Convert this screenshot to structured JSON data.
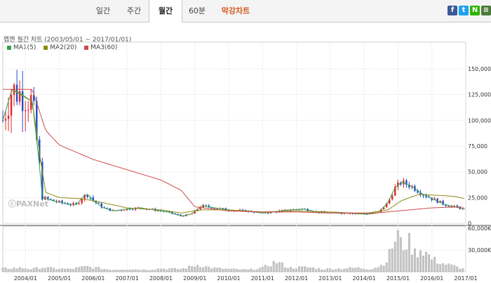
{
  "tabs": [
    {
      "label": "일간",
      "active": false
    },
    {
      "label": "주간",
      "active": false
    },
    {
      "label": "월간",
      "active": true
    },
    {
      "label": "60분",
      "active": false
    },
    {
      "label": "막강차트",
      "active": false
    }
  ],
  "share_icons": [
    {
      "name": "facebook-icon",
      "glyph": "f",
      "color": "#3b5998"
    },
    {
      "name": "twitter-icon",
      "glyph": "t",
      "color": "#1da1f2"
    },
    {
      "name": "naver-icon",
      "glyph": "N",
      "color": "#2db400"
    },
    {
      "name": "menu-icon",
      "glyph": "≡",
      "color": "#4a7c3a"
    }
  ],
  "watermark": "ⓒPAXNet",
  "chart_data": {
    "type": "candlestick",
    "title": "펩젠 월간 차트 (2003/05/01 ~ 2017/01/01)",
    "legend": [
      {
        "name": "MA1(5)",
        "color": "#3aa04a"
      },
      {
        "name": "MA2(20)",
        "color": "#8c8c14"
      },
      {
        "name": "MA3(60)",
        "color": "#d04a4a"
      }
    ],
    "x_ticks": [
      "2004/01",
      "2005/01",
      "2006/01",
      "2007/01",
      "2008/01",
      "2009/01",
      "2010/01",
      "2011/01",
      "2012/01",
      "2013/01",
      "2014/01",
      "2015/01",
      "2016/01",
      "2017/01"
    ],
    "price_ticks": [
      "150,000",
      "125,000",
      "100,000",
      "75,000",
      "50,000",
      "25,000",
      "0"
    ],
    "price_tick_values": [
      150000,
      125000,
      100000,
      75000,
      50000,
      25000,
      0
    ],
    "price_ylim": [
      0,
      165000
    ],
    "volume_ticks": [
      "60,000K",
      "30,000K"
    ],
    "volume_tick_values": [
      60000,
      30000
    ],
    "volume_ylim": [
      0,
      63000
    ],
    "x_range": [
      2003.33,
      2017.0
    ],
    "price_keypoints": [
      [
        2003.33,
        100000
      ],
      [
        2003.6,
        130000
      ],
      [
        2003.9,
        125000
      ],
      [
        2004.2,
        118000
      ],
      [
        2004.4,
        60000
      ],
      [
        2004.5,
        25000
      ],
      [
        2004.8,
        22000
      ],
      [
        2005.2,
        19000
      ],
      [
        2005.5,
        18000
      ],
      [
        2005.7,
        26000
      ],
      [
        2005.85,
        28000
      ],
      [
        2006.0,
        22000
      ],
      [
        2006.3,
        15000
      ],
      [
        2006.6,
        12000
      ],
      [
        2007.0,
        14000
      ],
      [
        2007.4,
        15000
      ],
      [
        2007.8,
        13000
      ],
      [
        2008.2,
        11000
      ],
      [
        2008.6,
        7000
      ],
      [
        2008.9,
        9000
      ],
      [
        2009.2,
        17000
      ],
      [
        2009.6,
        15000
      ],
      [
        2010.0,
        13000
      ],
      [
        2010.5,
        12000
      ],
      [
        2011.0,
        10000
      ],
      [
        2011.3,
        11000
      ],
      [
        2011.8,
        13000
      ],
      [
        2012.2,
        14000
      ],
      [
        2012.6,
        11000
      ],
      [
        2013.0,
        10000
      ],
      [
        2013.6,
        10000
      ],
      [
        2014.0,
        9000
      ],
      [
        2014.4,
        10000
      ],
      [
        2014.7,
        20000
      ],
      [
        2014.9,
        34000
      ],
      [
        2015.1,
        40000
      ],
      [
        2015.4,
        36000
      ],
      [
        2015.7,
        29000
      ],
      [
        2016.0,
        24000
      ],
      [
        2016.4,
        18000
      ],
      [
        2016.8,
        15000
      ],
      [
        2017.0,
        14000
      ]
    ],
    "ma3_keypoints": [
      [
        2003.33,
        130000
      ],
      [
        2004.2,
        130000
      ],
      [
        2004.6,
        90000
      ],
      [
        2005.0,
        76000
      ],
      [
        2006.0,
        62000
      ],
      [
        2007.0,
        52000
      ],
      [
        2008.0,
        42000
      ],
      [
        2008.6,
        32000
      ],
      [
        2009.0,
        16000
      ],
      [
        2010.0,
        12000
      ],
      [
        2011.0,
        11000
      ],
      [
        2012.0,
        11000
      ],
      [
        2013.0,
        10000
      ],
      [
        2014.3,
        10000
      ],
      [
        2015.0,
        12000
      ],
      [
        2016.0,
        15000
      ],
      [
        2016.9,
        16000
      ]
    ],
    "ma2_keypoints": [
      [
        2003.6,
        130000
      ],
      [
        2004.2,
        118000
      ],
      [
        2004.45,
        60000
      ],
      [
        2004.6,
        30000
      ],
      [
        2005.0,
        25000
      ],
      [
        2005.6,
        24000
      ],
      [
        2006.0,
        22000
      ],
      [
        2007.0,
        15000
      ],
      [
        2008.0,
        13000
      ],
      [
        2008.6,
        10000
      ],
      [
        2009.2,
        13000
      ],
      [
        2010.0,
        13000
      ],
      [
        2011.0,
        11000
      ],
      [
        2012.0,
        12000
      ],
      [
        2013.0,
        11000
      ],
      [
        2014.0,
        9500
      ],
      [
        2014.7,
        13000
      ],
      [
        2015.1,
        22000
      ],
      [
        2015.6,
        28000
      ],
      [
        2016.3,
        27000
      ],
      [
        2016.7,
        26000
      ],
      [
        2016.95,
        24000
      ]
    ],
    "volume_keypoints": [
      [
        2003.33,
        5000
      ],
      [
        2003.9,
        6000
      ],
      [
        2004.2,
        4000
      ],
      [
        2004.5,
        7000
      ],
      [
        2004.8,
        5000
      ],
      [
        2005.3,
        4000
      ],
      [
        2005.8,
        8000
      ],
      [
        2006.1,
        6000
      ],
      [
        2006.5,
        3000
      ],
      [
        2007.0,
        4000
      ],
      [
        2007.6,
        3000
      ],
      [
        2008.0,
        5000
      ],
      [
        2008.6,
        4000
      ],
      [
        2009.1,
        11000
      ],
      [
        2009.5,
        6000
      ],
      [
        2010.0,
        4000
      ],
      [
        2010.6,
        3000
      ],
      [
        2011.0,
        6000
      ],
      [
        2011.4,
        16000
      ],
      [
        2011.8,
        6000
      ],
      [
        2012.3,
        7000
      ],
      [
        2012.8,
        4000
      ],
      [
        2013.3,
        5000
      ],
      [
        2013.8,
        6000
      ],
      [
        2014.2,
        4000
      ],
      [
        2014.5,
        10000
      ],
      [
        2014.7,
        20000
      ],
      [
        2014.85,
        45000
      ],
      [
        2015.0,
        61000
      ],
      [
        2015.1,
        40000
      ],
      [
        2015.3,
        50000
      ],
      [
        2015.5,
        30000
      ],
      [
        2015.7,
        38000
      ],
      [
        2016.0,
        20000
      ],
      [
        2016.4,
        12000
      ],
      [
        2016.7,
        8000
      ],
      [
        2017.0,
        3000
      ]
    ]
  }
}
